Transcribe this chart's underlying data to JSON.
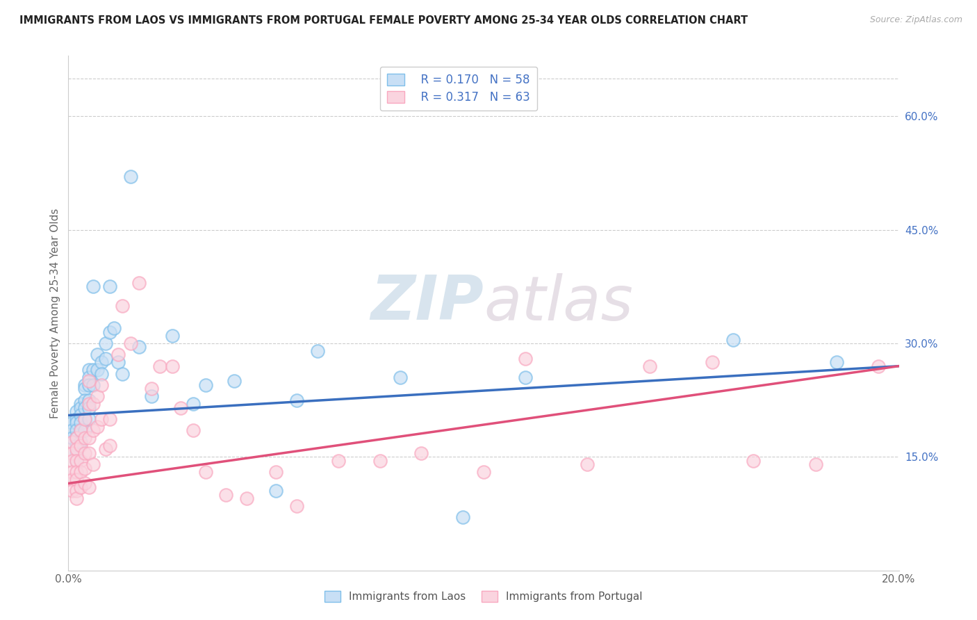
{
  "title": "IMMIGRANTS FROM LAOS VS IMMIGRANTS FROM PORTUGAL FEMALE POVERTY AMONG 25-34 YEAR OLDS CORRELATION CHART",
  "source": "Source: ZipAtlas.com",
  "ylabel": "Female Poverty Among 25-34 Year Olds",
  "xlim": [
    0.0,
    0.2
  ],
  "ylim": [
    0.0,
    0.68
  ],
  "color_laos": "#7fbfea",
  "color_portugal": "#f9a8c0",
  "color_laos_line": "#3a6fbf",
  "color_portugal_line": "#e0507a",
  "color_laos_fill": "#c8dff5",
  "color_portugal_fill": "#fad4df",
  "watermark": "ZIPatlas",
  "watermark_color_zip": "#b0c8e0",
  "watermark_color_atlas": "#d0b8c8",
  "laos_x": [
    0.001,
    0.001,
    0.001,
    0.002,
    0.002,
    0.002,
    0.002,
    0.002,
    0.002,
    0.002,
    0.002,
    0.003,
    0.003,
    0.003,
    0.003,
    0.003,
    0.003,
    0.004,
    0.004,
    0.004,
    0.004,
    0.004,
    0.004,
    0.005,
    0.005,
    0.005,
    0.005,
    0.005,
    0.005,
    0.006,
    0.006,
    0.006,
    0.007,
    0.007,
    0.008,
    0.008,
    0.009,
    0.009,
    0.01,
    0.01,
    0.011,
    0.012,
    0.013,
    0.015,
    0.017,
    0.02,
    0.025,
    0.03,
    0.033,
    0.04,
    0.05,
    0.055,
    0.06,
    0.08,
    0.095,
    0.11,
    0.16,
    0.185
  ],
  "laos_y": [
    0.195,
    0.185,
    0.175,
    0.21,
    0.2,
    0.195,
    0.185,
    0.175,
    0.165,
    0.155,
    0.145,
    0.22,
    0.215,
    0.205,
    0.195,
    0.185,
    0.17,
    0.245,
    0.24,
    0.225,
    0.215,
    0.2,
    0.185,
    0.265,
    0.255,
    0.245,
    0.225,
    0.215,
    0.2,
    0.375,
    0.265,
    0.245,
    0.285,
    0.265,
    0.275,
    0.26,
    0.3,
    0.28,
    0.375,
    0.315,
    0.32,
    0.275,
    0.26,
    0.52,
    0.295,
    0.23,
    0.31,
    0.22,
    0.245,
    0.25,
    0.105,
    0.225,
    0.29,
    0.255,
    0.07,
    0.255,
    0.305,
    0.275
  ],
  "portugal_x": [
    0.001,
    0.001,
    0.001,
    0.001,
    0.001,
    0.001,
    0.002,
    0.002,
    0.002,
    0.002,
    0.002,
    0.002,
    0.002,
    0.003,
    0.003,
    0.003,
    0.003,
    0.003,
    0.004,
    0.004,
    0.004,
    0.004,
    0.004,
    0.005,
    0.005,
    0.005,
    0.005,
    0.005,
    0.006,
    0.006,
    0.006,
    0.007,
    0.007,
    0.008,
    0.008,
    0.009,
    0.01,
    0.01,
    0.012,
    0.013,
    0.015,
    0.017,
    0.02,
    0.022,
    0.025,
    0.027,
    0.03,
    0.033,
    0.038,
    0.043,
    0.05,
    0.055,
    0.065,
    0.075,
    0.085,
    0.1,
    0.11,
    0.125,
    0.14,
    0.155,
    0.165,
    0.18,
    0.195
  ],
  "portugal_y": [
    0.17,
    0.155,
    0.145,
    0.13,
    0.12,
    0.105,
    0.175,
    0.16,
    0.145,
    0.13,
    0.12,
    0.105,
    0.095,
    0.185,
    0.165,
    0.145,
    0.13,
    0.11,
    0.2,
    0.175,
    0.155,
    0.135,
    0.115,
    0.25,
    0.22,
    0.175,
    0.155,
    0.11,
    0.22,
    0.185,
    0.14,
    0.23,
    0.19,
    0.245,
    0.2,
    0.16,
    0.2,
    0.165,
    0.285,
    0.35,
    0.3,
    0.38,
    0.24,
    0.27,
    0.27,
    0.215,
    0.185,
    0.13,
    0.1,
    0.095,
    0.13,
    0.085,
    0.145,
    0.145,
    0.155,
    0.13,
    0.28,
    0.14,
    0.27,
    0.275,
    0.145,
    0.14,
    0.27
  ]
}
